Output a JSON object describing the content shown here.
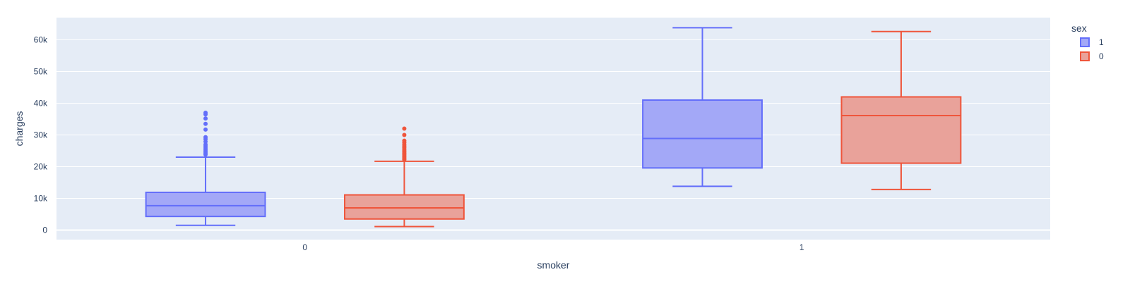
{
  "chart_data": {
    "type": "box",
    "xlabel": "smoker",
    "ylabel": "charges",
    "categories": [
      "0",
      "1"
    ],
    "ylim": [
      -3000,
      67000
    ],
    "yticks": [
      0,
      10000,
      20000,
      30000,
      40000,
      50000,
      60000
    ],
    "ytick_labels": [
      "0",
      "10k",
      "20k",
      "30k",
      "40k",
      "50k",
      "60k"
    ],
    "grid": true,
    "legend": {
      "title": "sex",
      "position": "top-right"
    },
    "colors": {
      "plot_bg": "#e5ecf6",
      "grid": "#ffffff",
      "text": "#2a3f5f"
    },
    "series": [
      {
        "name": "1",
        "color": "#636efa",
        "fill": "#a3a8f7",
        "boxes": [
          {
            "category": "0",
            "lowerfence": 1500,
            "q1": 4300,
            "median": 7700,
            "q3": 11900,
            "upperfence": 23000,
            "outliers": [
              23800,
              24300,
              24800,
              25300,
              25900,
              26500,
              27000,
              27900,
              28700,
              29300,
              31700,
              33500,
              35200,
              36500,
              37000
            ]
          },
          {
            "category": "1",
            "lowerfence": 13800,
            "q1": 19600,
            "median": 28900,
            "q3": 41000,
            "upperfence": 63800,
            "outliers": []
          }
        ]
      },
      {
        "name": "0",
        "color": "#ef553b",
        "fill": "#e9a29a",
        "boxes": [
          {
            "category": "0",
            "lowerfence": 1100,
            "q1": 3500,
            "median": 7000,
            "q3": 11100,
            "upperfence": 21700,
            "outliers": [
              22200,
              22600,
              23000,
              23400,
              23800,
              24200,
              24600,
              25000,
              25500,
              26000,
              26500,
              27000,
              27600,
              28200,
              30000,
              32000
            ]
          },
          {
            "category": "1",
            "lowerfence": 12800,
            "q1": 21100,
            "median": 36100,
            "q3": 42000,
            "upperfence": 62600,
            "outliers": []
          }
        ]
      }
    ]
  }
}
